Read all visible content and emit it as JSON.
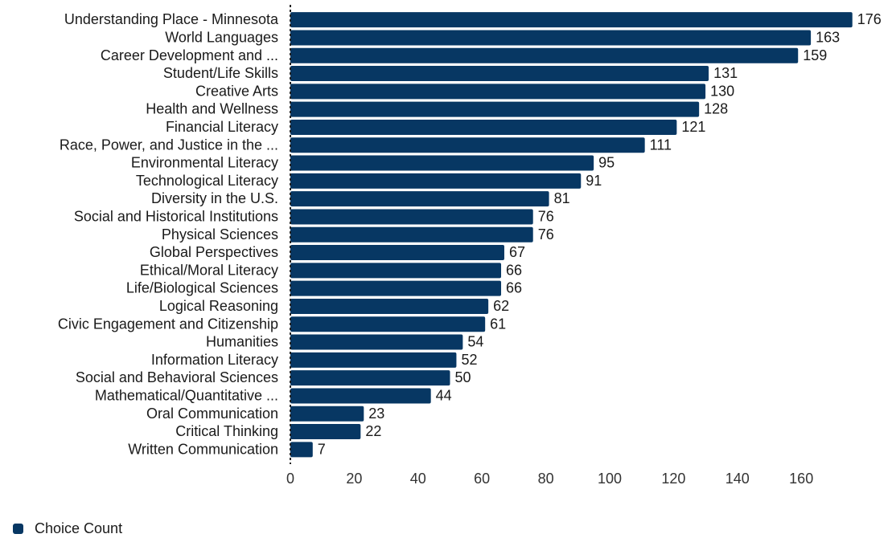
{
  "chart_data": {
    "type": "bar",
    "orientation": "horizontal",
    "categories": [
      "Understanding Place - Minnesota",
      "World Languages",
      "Career Development and ...",
      "Student/Life Skills",
      "Creative Arts",
      "Health and Wellness",
      "Financial Literacy",
      "Race, Power, and Justice in the ...",
      "Environmental Literacy",
      "Technological Literacy",
      "Diversity in the U.S.",
      "Social and Historical Institutions",
      "Physical Sciences",
      "Global Perspectives",
      "Ethical/Moral Literacy",
      "Life/Biological Sciences",
      "Logical Reasoning",
      "Civic Engagement and Citizenship",
      "Humanities",
      "Information Literacy",
      "Social and Behavioral Sciences",
      "Mathematical/Quantitative ...",
      "Oral Communication",
      "Critical Thinking",
      "Written Communication"
    ],
    "series": [
      {
        "name": "Choice Count",
        "values": [
          176,
          163,
          159,
          131,
          130,
          128,
          121,
          111,
          95,
          91,
          81,
          76,
          76,
          67,
          66,
          66,
          62,
          61,
          54,
          52,
          50,
          44,
          23,
          22,
          7
        ]
      }
    ],
    "xlim": [
      0,
      176
    ],
    "xticks": [
      0,
      20,
      40,
      60,
      80,
      100,
      120,
      140,
      160
    ],
    "grid": false,
    "legend_position": "bottom-left",
    "color": "#073763",
    "title": "",
    "xlabel": "",
    "ylabel": ""
  },
  "legend": {
    "label": "Choice Count",
    "color": "#073763"
  }
}
